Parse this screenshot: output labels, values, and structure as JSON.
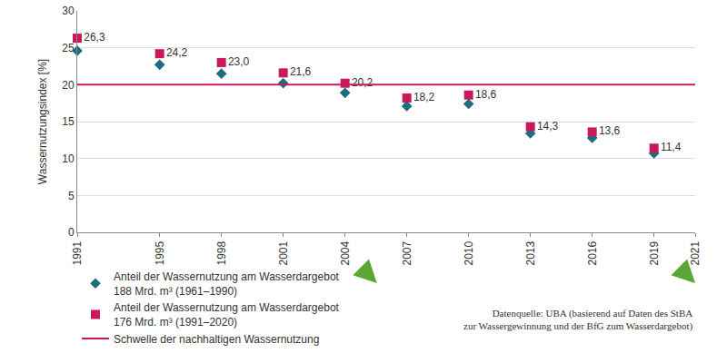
{
  "chart_data": {
    "type": "scatter",
    "y_label": "Wassernutzungsindex [%]",
    "x": [
      1991,
      1995,
      1998,
      2001,
      2004,
      2007,
      2010,
      2013,
      2016,
      2019
    ],
    "series": [
      {
        "name": "Anteil der Wassernutzung am Wasserdargebot 188 Mrd. m³ (1961–1990)",
        "color": "#1b6e80",
        "marker": "diamond",
        "values": [
          24.6,
          22.7,
          21.5,
          20.2,
          18.9,
          17.1,
          17.4,
          13.4,
          12.8,
          10.7
        ]
      },
      {
        "name": "Anteil der Wassernutzung am Wasserdargebot 176 Mrd. m³ (1991–2020)",
        "color": "#c9185b",
        "marker": "square",
        "values": [
          26.3,
          24.2,
          23.0,
          21.6,
          20.2,
          18.2,
          18.6,
          14.3,
          13.6,
          11.4
        ],
        "value_labels": [
          "26,3",
          "24,2",
          "23,0",
          "21,6",
          "20,2",
          "18,2",
          "18,6",
          "14,3",
          "13,6",
          "11,4"
        ]
      }
    ],
    "threshold": {
      "name": "Schwelle der nachhaltigen Wassernutzung",
      "value": 20,
      "color": "#c9185b",
      "line_style": "solid"
    },
    "source": [
      "Datenquelle: UBA (basierend auf Daten des StBA",
      "zur Wassergewinnung und der BfG zum Wasserdargebot)"
    ],
    "xlim": [
      1991,
      2021
    ],
    "xticks": [
      1991,
      1995,
      1998,
      2001,
      2004,
      2007,
      2010,
      2013,
      2016,
      2019,
      2021
    ],
    "ylim": [
      0,
      30
    ],
    "yticks": [
      0,
      5,
      10,
      15,
      20,
      25,
      30
    ],
    "grid": true,
    "data_labels": true,
    "legend": "bottom"
  }
}
